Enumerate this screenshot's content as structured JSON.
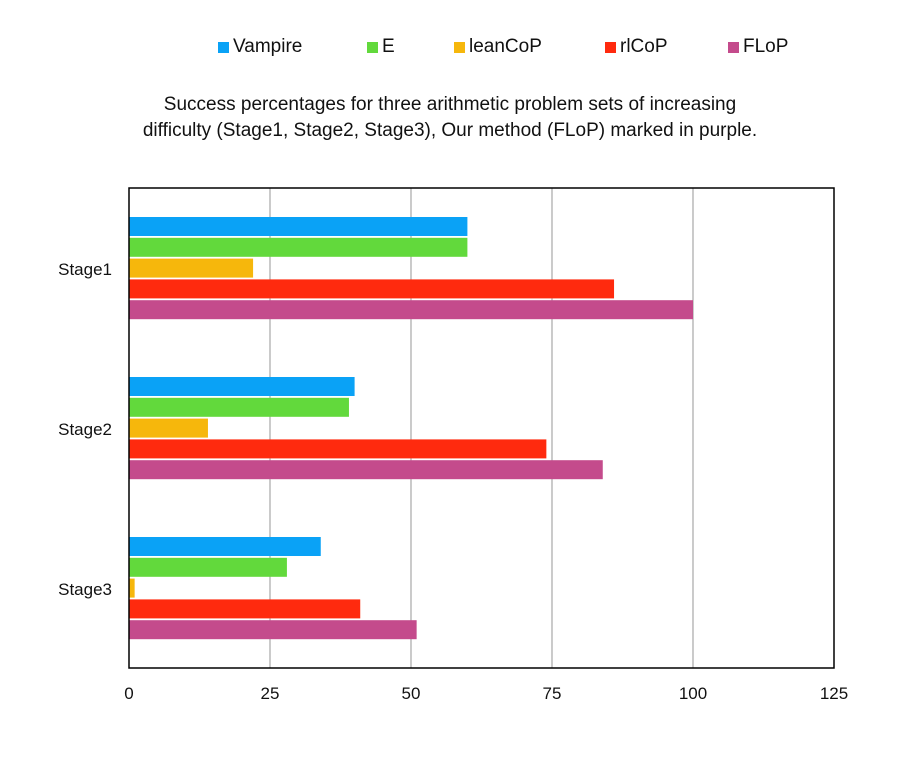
{
  "chart_data": {
    "type": "bar",
    "orientation": "horizontal",
    "title_lines": [
      "Success percentages for three arithmetic problem sets of increasing",
      "difficulty (Stage1, Stage2, Stage3), Our method (FLoP) marked in purple."
    ],
    "categories": [
      "Stage1",
      "Stage2",
      "Stage3"
    ],
    "series": [
      {
        "name": "Vampire",
        "color": "#0aa2f6",
        "values": [
          60,
          40,
          34
        ]
      },
      {
        "name": "E",
        "color": "#62d93c",
        "values": [
          60,
          39,
          28
        ]
      },
      {
        "name": "leanCoP",
        "color": "#f6b70c",
        "values": [
          22,
          14,
          1
        ]
      },
      {
        "name": "rlCoP",
        "color": "#ff2a0e",
        "values": [
          86,
          74,
          41
        ]
      },
      {
        "name": "FLoP",
        "color": "#c44b8c",
        "values": [
          100,
          84,
          51
        ]
      }
    ],
    "xlim": [
      0,
      125
    ],
    "xticks": [
      "0",
      "25",
      "50",
      "75",
      "100",
      "125"
    ],
    "grid": "vertical",
    "legend": "top"
  }
}
